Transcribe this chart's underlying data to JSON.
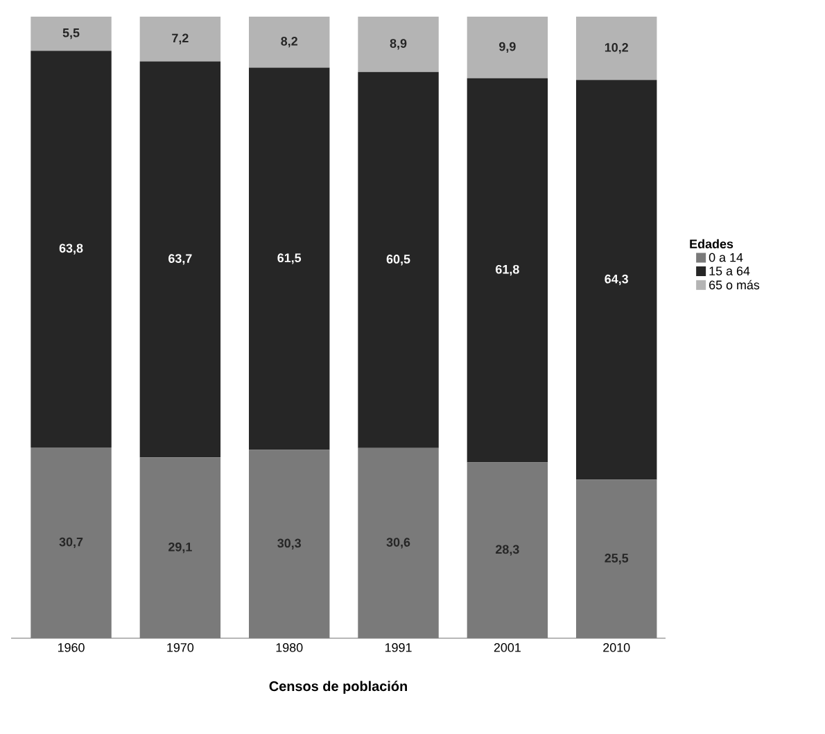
{
  "chart_data": {
    "type": "bar",
    "stacked": true,
    "xlabel": "Censos de población",
    "legend_title": "Edades",
    "legend": "right",
    "tick_labels": "x",
    "categories": [
      "1960",
      "1970",
      "1980",
      "1991",
      "2001",
      "2010"
    ],
    "series": [
      {
        "name": "0 a 14",
        "color": "#7a7a7a",
        "values": [
          30.7,
          29.1,
          30.3,
          30.6,
          28.3,
          25.5
        ],
        "value_labels": [
          "30,7",
          "29,1",
          "30,3",
          "30,6",
          "28,3",
          "25,5"
        ]
      },
      {
        "name": "15 a 64",
        "color": "#262626",
        "values": [
          63.8,
          63.7,
          61.5,
          60.5,
          61.8,
          64.3
        ],
        "value_labels": [
          "63,8",
          "63,7",
          "61,5",
          "60,5",
          "61,8",
          "64,3"
        ]
      },
      {
        "name": "65 o más",
        "color": "#b4b4b4",
        "values": [
          5.5,
          7.2,
          8.2,
          8.9,
          9.9,
          10.2
        ],
        "value_labels": [
          "5,5",
          "7,2",
          "8,2",
          "8,9",
          "9,9",
          "10,2"
        ]
      }
    ]
  }
}
